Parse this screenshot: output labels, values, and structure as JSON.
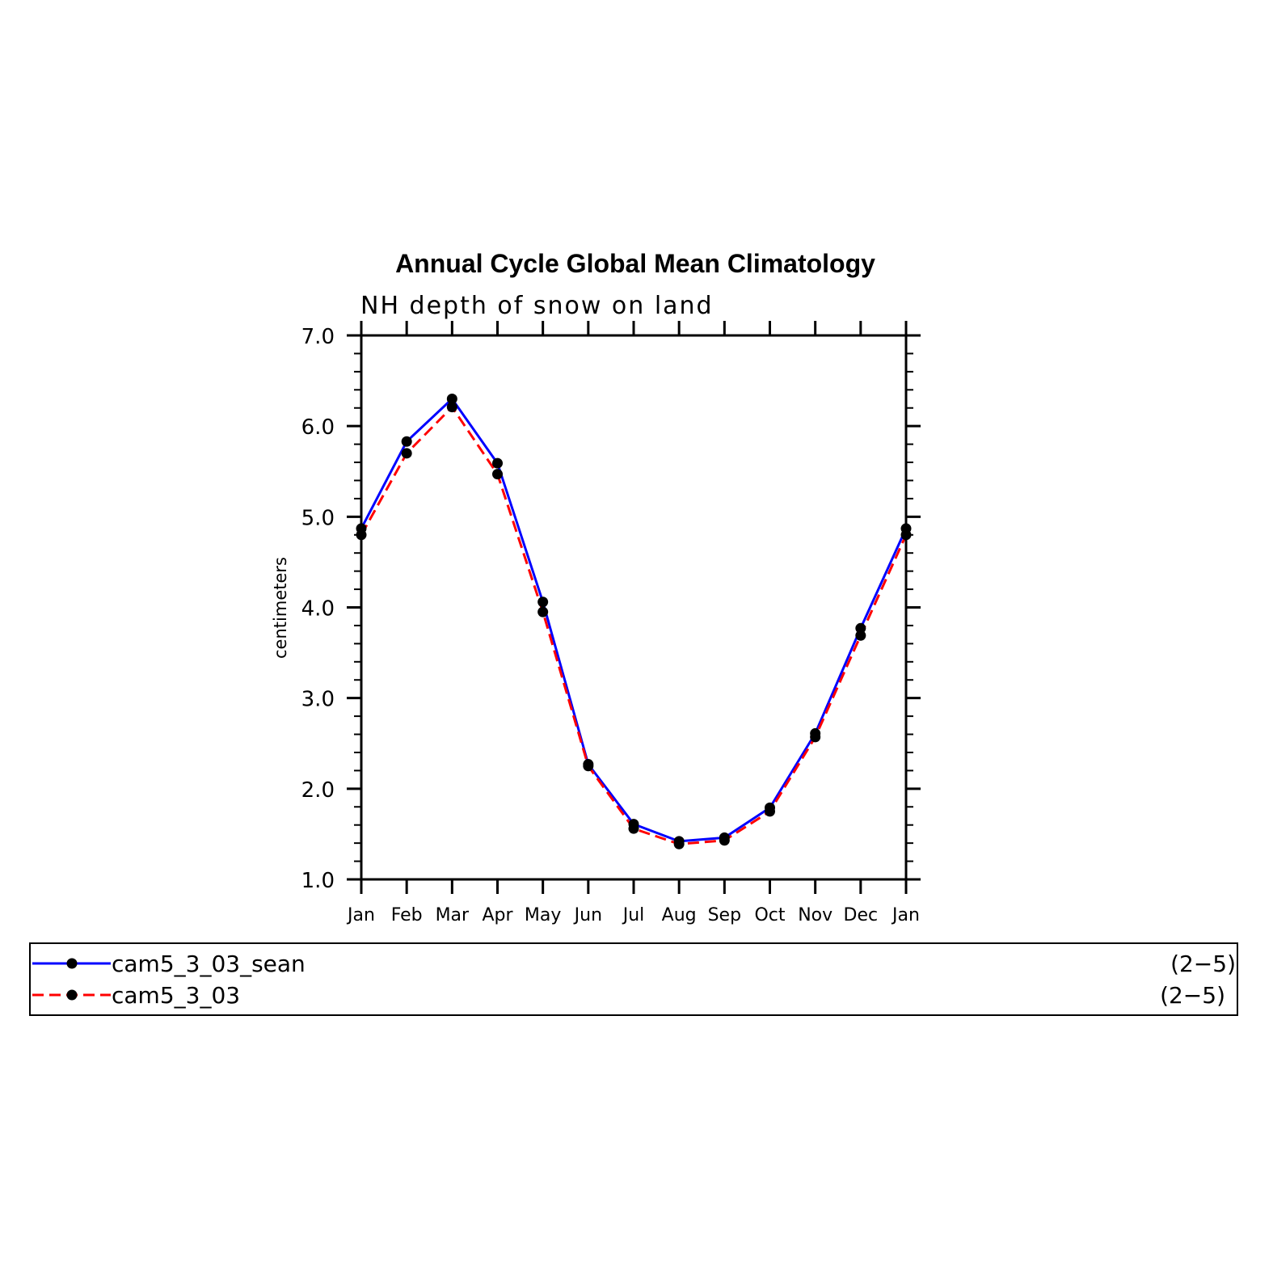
{
  "chart_data": {
    "type": "line",
    "title": "Annual Cycle Global Mean Climatology",
    "subtitle": "NH depth of snow on land",
    "xlabel": "",
    "ylabel": "centimeters",
    "categories": [
      "Jan",
      "Feb",
      "Mar",
      "Apr",
      "May",
      "Jun",
      "Jul",
      "Aug",
      "Sep",
      "Oct",
      "Nov",
      "Dec",
      "Jan"
    ],
    "ylim": [
      1.0,
      7.0
    ],
    "yticks": [
      "1.0",
      "2.0",
      "3.0",
      "4.0",
      "5.0",
      "6.0",
      "7.0"
    ],
    "grid": false,
    "legend_position": "bottom",
    "series": [
      {
        "name": "cam5_3_03_sean",
        "period": "(2−5)",
        "color": "#0000ff",
        "dash": "solid",
        "values": [
          4.87,
          5.83,
          6.3,
          5.59,
          4.06,
          2.27,
          1.61,
          1.42,
          1.46,
          1.79,
          2.61,
          3.77,
          4.87
        ]
      },
      {
        "name": "cam5_3_03",
        "period": "(2−5)",
        "color": "#ff0000",
        "dash": "dashed",
        "values": [
          4.8,
          5.7,
          6.21,
          5.47,
          3.95,
          2.25,
          1.56,
          1.39,
          1.43,
          1.75,
          2.57,
          3.69,
          4.8
        ]
      }
    ]
  }
}
